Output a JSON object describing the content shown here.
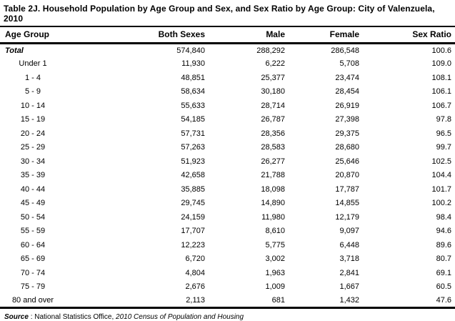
{
  "title": "Table 2J. Household Population by Age Group and Sex, and Sex Ratio by Age Group: City of Valenzuela, 2010",
  "table": {
    "headers": [
      "Age Group",
      "Both Sexes",
      "Male",
      "Female",
      "Sex Ratio"
    ],
    "total": {
      "age": "Total",
      "both": "574,840",
      "male": "288,292",
      "female": "286,548",
      "ratio": "100.6"
    },
    "rows": [
      {
        "age": "Under 1",
        "both": "11,930",
        "male": "6,222",
        "female": "5,708",
        "ratio": "109.0"
      },
      {
        "age": "1 - 4",
        "both": "48,851",
        "male": "25,377",
        "female": "23,474",
        "ratio": "108.1"
      },
      {
        "age": "5 - 9",
        "both": "58,634",
        "male": "30,180",
        "female": "28,454",
        "ratio": "106.1"
      },
      {
        "age": "10 - 14",
        "both": "55,633",
        "male": "28,714",
        "female": "26,919",
        "ratio": "106.7"
      },
      {
        "age": "15 - 19",
        "both": "54,185",
        "male": "26,787",
        "female": "27,398",
        "ratio": "97.8"
      },
      {
        "age": "20 - 24",
        "both": "57,731",
        "male": "28,356",
        "female": "29,375",
        "ratio": "96.5"
      },
      {
        "age": "25 - 29",
        "both": "57,263",
        "male": "28,583",
        "female": "28,680",
        "ratio": "99.7"
      },
      {
        "age": "30 - 34",
        "both": "51,923",
        "male": "26,277",
        "female": "25,646",
        "ratio": "102.5"
      },
      {
        "age": "35 - 39",
        "both": "42,658",
        "male": "21,788",
        "female": "20,870",
        "ratio": "104.4"
      },
      {
        "age": "40 - 44",
        "both": "35,885",
        "male": "18,098",
        "female": "17,787",
        "ratio": "101.7"
      },
      {
        "age": "45 - 49",
        "both": "29,745",
        "male": "14,890",
        "female": "14,855",
        "ratio": "100.2"
      },
      {
        "age": "50 - 54",
        "both": "24,159",
        "male": "11,980",
        "female": "12,179",
        "ratio": "98.4"
      },
      {
        "age": "55 - 59",
        "both": "17,707",
        "male": "8,610",
        "female": "9,097",
        "ratio": "94.6"
      },
      {
        "age": "60 - 64",
        "both": "12,223",
        "male": "5,775",
        "female": "6,448",
        "ratio": "89.6"
      },
      {
        "age": "65 - 69",
        "both": "6,720",
        "male": "3,002",
        "female": "3,718",
        "ratio": "80.7"
      },
      {
        "age": "70 - 74",
        "both": "4,804",
        "male": "1,963",
        "female": "2,841",
        "ratio": "69.1"
      },
      {
        "age": "75 - 79",
        "both": "2,676",
        "male": "1,009",
        "female": "1,667",
        "ratio": "60.5"
      },
      {
        "age": "80 and over",
        "both": "2,113",
        "male": "681",
        "female": "1,432",
        "ratio": "47.6"
      }
    ]
  },
  "source": {
    "label": "Source",
    "separator": ":",
    "text": "National Statistics Office,",
    "citation": "2010 Census of Population and Housing"
  }
}
